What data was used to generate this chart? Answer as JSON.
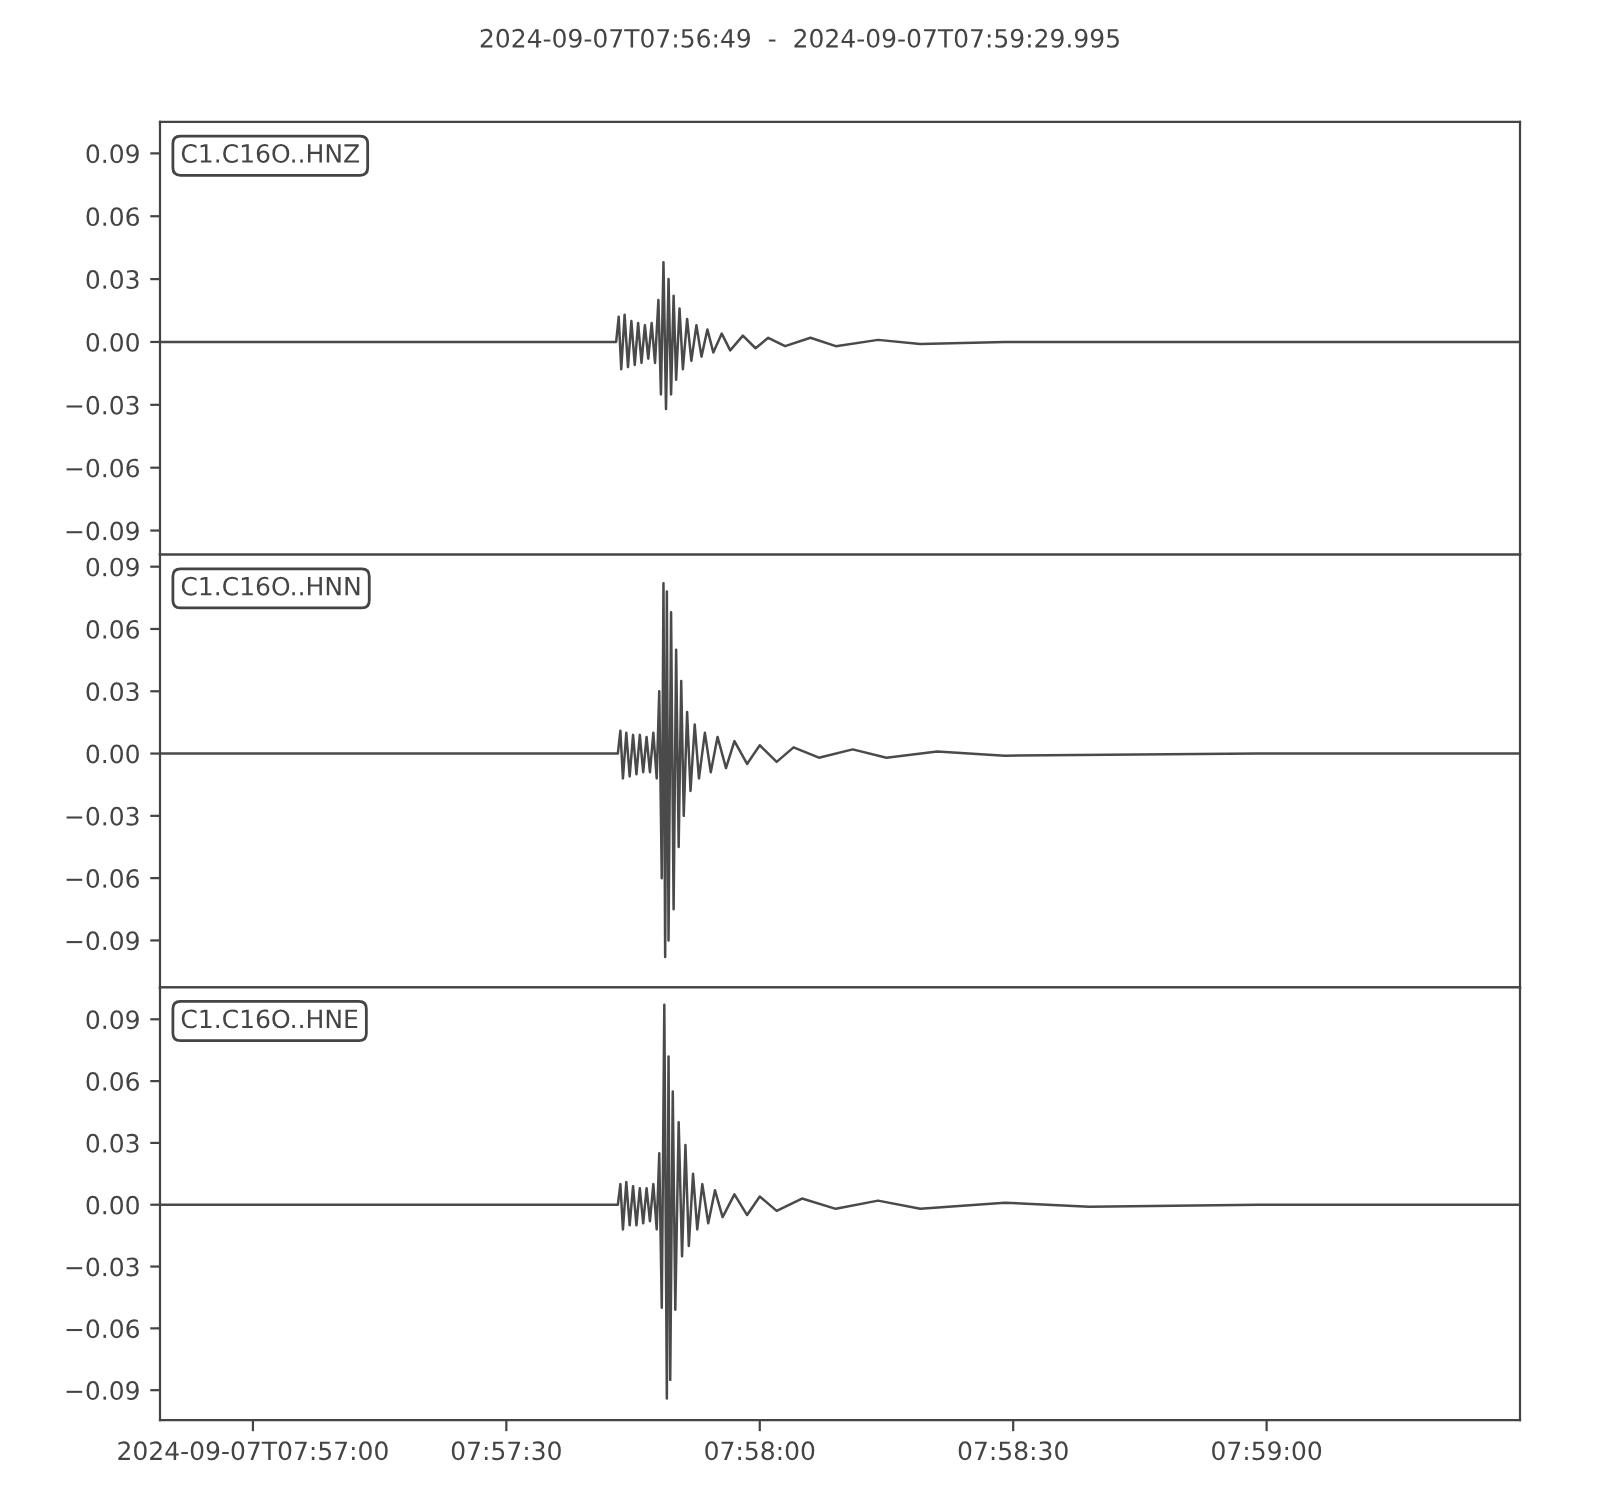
{
  "chart_data": [
    {
      "type": "line",
      "title": "2024-09-07T07:56:49  -  2024-09-07T07:59:29.995",
      "annotations": [
        "C1.C16O..HNZ"
      ],
      "tick_labels": "y",
      "grid": false,
      "legend": false,
      "xlim": [
        "2024-09-07T07:56:49",
        "2024-09-07T07:59:29.995"
      ],
      "ylim": [
        -0.1015,
        0.105
      ],
      "yticks": [
        {
          "value": -0.09,
          "label": "−0.09"
        },
        {
          "value": -0.06,
          "label": "−0.06"
        },
        {
          "value": -0.03,
          "label": "−0.03"
        },
        {
          "value": 0,
          "label": "0.00"
        },
        0.03,
        0.06,
        0.09
      ],
      "series": [
        {
          "color": "#4a4a4a",
          "x": [
            "2024-09-07T07:56:49",
            "2024-09-07T07:57:09",
            "2024-09-07T07:57:29",
            "2024-09-07T07:57:43.0",
            "2024-09-07T07:57:43.3",
            "2024-09-07T07:57:43.6",
            "2024-09-07T07:57:44.0",
            "2024-09-07T07:57:44.4",
            "2024-09-07T07:57:44.8",
            "2024-09-07T07:57:45.2",
            "2024-09-07T07:57:45.6",
            "2024-09-07T07:57:46.0",
            "2024-09-07T07:57:46.4",
            "2024-09-07T07:57:46.8",
            "2024-09-07T07:57:47.2",
            "2024-09-07T07:57:47.6",
            "2024-09-07T07:57:48.0",
            "2024-09-07T07:57:48.3",
            "2024-09-07T07:57:48.6",
            "2024-09-07T07:57:48.9",
            "2024-09-07T07:57:49.2",
            "2024-09-07T07:57:49.5",
            "2024-09-07T07:57:49.8",
            "2024-09-07T07:57:50.1",
            "2024-09-07T07:57:50.5",
            "2024-09-07T07:57:50.9",
            "2024-09-07T07:57:51.4",
            "2024-09-07T07:57:51.9",
            "2024-09-07T07:57:52.5",
            "2024-09-07T07:57:53.1",
            "2024-09-07T07:57:53.8",
            "2024-09-07T07:57:54.5",
            "2024-09-07T07:57:55.5",
            "2024-09-07T07:57:56.5",
            "2024-09-07T07:57:58",
            "2024-09-07T07:57:59.5",
            "2024-09-07T07:58:01",
            "2024-09-07T07:58:03",
            "2024-09-07T07:58:06",
            "2024-09-07T07:58:09",
            "2024-09-07T07:58:14",
            "2024-09-07T07:58:19",
            "2024-09-07T07:58:29",
            "2024-09-07T07:58:59",
            "2024-09-07T07:59:29.995"
          ],
          "values": [
            0,
            0,
            0,
            0,
            0.012,
            -0.013,
            0.013,
            -0.012,
            0.01,
            -0.011,
            0.009,
            -0.01,
            0.008,
            -0.008,
            0.009,
            -0.01,
            0.02,
            -0.025,
            0.038,
            -0.032,
            0.03,
            -0.025,
            0.022,
            -0.018,
            0.016,
            -0.013,
            0.011,
            -0.009,
            0.008,
            -0.007,
            0.006,
            -0.005,
            0.004,
            -0.004,
            0.003,
            -0.003,
            0.002,
            -0.002,
            0.002,
            -0.002,
            0.001,
            -0.001,
            0,
            0,
            0
          ]
        }
      ]
    },
    {
      "type": "line",
      "annotations": [
        "C1.C16O..HNN"
      ],
      "tick_labels": "y",
      "grid": false,
      "legend": false,
      "xlim": [
        "2024-09-07T07:56:49",
        "2024-09-07T07:59:29.995"
      ],
      "ylim": [
        -0.1126,
        0.0958
      ],
      "yticks": [
        {
          "value": -0.09,
          "label": "−0.09"
        },
        {
          "value": -0.06,
          "label": "−0.06"
        },
        {
          "value": -0.03,
          "label": "−0.03"
        },
        {
          "value": 0,
          "label": "0.00"
        },
        0.03,
        0.06,
        0.09
      ],
      "series": [
        {
          "color": "#4a4a4a",
          "x": [
            "2024-09-07T07:56:49",
            "2024-09-07T07:57:09",
            "2024-09-07T07:57:29",
            "2024-09-07T07:57:43.2",
            "2024-09-07T07:57:43.5",
            "2024-09-07T07:57:43.8",
            "2024-09-07T07:57:44.2",
            "2024-09-07T07:57:44.6",
            "2024-09-07T07:57:45.0",
            "2024-09-07T07:57:45.4",
            "2024-09-07T07:57:45.8",
            "2024-09-07T07:57:46.2",
            "2024-09-07T07:57:46.6",
            "2024-09-07T07:57:47.0",
            "2024-09-07T07:57:47.4",
            "2024-09-07T07:57:47.8",
            "2024-09-07T07:57:48.1",
            "2024-09-07T07:57:48.4",
            "2024-09-07T07:57:48.6",
            "2024-09-07T07:57:48.8",
            "2024-09-07T07:57:49.0",
            "2024-09-07T07:57:49.2",
            "2024-09-07T07:57:49.5",
            "2024-09-07T07:57:49.8",
            "2024-09-07T07:57:50.1",
            "2024-09-07T07:57:50.4",
            "2024-09-07T07:57:50.7",
            "2024-09-07T07:57:51.0",
            "2024-09-07T07:57:51.4",
            "2024-09-07T07:57:51.8",
            "2024-09-07T07:57:52.3",
            "2024-09-07T07:57:52.8",
            "2024-09-07T07:57:53.5",
            "2024-09-07T07:57:54.2",
            "2024-09-07T07:57:55",
            "2024-09-07T07:57:56",
            "2024-09-07T07:57:57",
            "2024-09-07T07:57:58.5",
            "2024-09-07T07:58:00",
            "2024-09-07T07:58:02",
            "2024-09-07T07:58:04",
            "2024-09-07T07:58:07",
            "2024-09-07T07:58:11",
            "2024-09-07T07:58:15",
            "2024-09-07T07:58:21",
            "2024-09-07T07:58:29",
            "2024-09-07T07:58:59",
            "2024-09-07T07:59:29.995"
          ],
          "values": [
            0,
            0,
            0,
            0,
            0.011,
            -0.012,
            0.01,
            -0.011,
            0.009,
            -0.01,
            0.009,
            -0.009,
            0.008,
            -0.009,
            0.01,
            -0.012,
            0.03,
            -0.06,
            0.082,
            -0.098,
            0.078,
            -0.09,
            0.068,
            -0.075,
            0.05,
            -0.045,
            0.035,
            -0.03,
            0.02,
            -0.018,
            0.014,
            -0.012,
            0.01,
            -0.009,
            0.008,
            -0.007,
            0.006,
            -0.005,
            0.004,
            -0.004,
            0.003,
            -0.002,
            0.002,
            -0.002,
            0.001,
            -0.001,
            0,
            0
          ]
        }
      ]
    },
    {
      "type": "line",
      "annotations": [
        "C1.C16O..HNE"
      ],
      "grid": false,
      "legend": false,
      "xlim": [
        "2024-09-07T07:56:49",
        "2024-09-07T07:59:29.995"
      ],
      "xticks": [
        {
          "value": "2024-09-07T07:57:00",
          "label": "2024-09-07T07:57:00"
        },
        {
          "value": "2024-09-07T07:57:30",
          "label": "07:57:30"
        },
        {
          "value": "2024-09-07T07:58:00",
          "label": "07:58:00"
        },
        {
          "value": "2024-09-07T07:58:30",
          "label": "07:58:30"
        },
        {
          "value": "2024-09-07T07:59:00",
          "label": "07:59:00"
        }
      ],
      "ylim": [
        -0.1045,
        0.1055
      ],
      "yticks": [
        {
          "value": -0.09,
          "label": "−0.09"
        },
        {
          "value": -0.06,
          "label": "−0.06"
        },
        {
          "value": -0.03,
          "label": "−0.03"
        },
        {
          "value": 0,
          "label": "0.00"
        },
        0.03,
        0.06,
        0.09
      ],
      "series": [
        {
          "color": "#4a4a4a",
          "x": [
            "2024-09-07T07:56:49",
            "2024-09-07T07:57:09",
            "2024-09-07T07:57:29",
            "2024-09-07T07:57:43.2",
            "2024-09-07T07:57:43.5",
            "2024-09-07T07:57:43.8",
            "2024-09-07T07:57:44.2",
            "2024-09-07T07:57:44.6",
            "2024-09-07T07:57:45.0",
            "2024-09-07T07:57:45.4",
            "2024-09-07T07:57:45.8",
            "2024-09-07T07:57:46.2",
            "2024-09-07T07:57:46.6",
            "2024-09-07T07:57:47.0",
            "2024-09-07T07:57:47.4",
            "2024-09-07T07:57:47.8",
            "2024-09-07T07:57:48.1",
            "2024-09-07T07:57:48.4",
            "2024-09-07T07:57:48.7",
            "2024-09-07T07:57:49.0",
            "2024-09-07T07:57:49.2",
            "2024-09-07T07:57:49.4",
            "2024-09-07T07:57:49.7",
            "2024-09-07T07:57:50.0",
            "2024-09-07T07:57:50.4",
            "2024-09-07T07:57:50.8",
            "2024-09-07T07:57:51.2",
            "2024-09-07T07:57:51.6",
            "2024-09-07T07:57:52.1",
            "2024-09-07T07:57:52.6",
            "2024-09-07T07:57:53.2",
            "2024-09-07T07:57:53.9",
            "2024-09-07T07:57:54.7",
            "2024-09-07T07:57:55.6",
            "2024-09-07T07:57:57",
            "2024-09-07T07:57:58.5",
            "2024-09-07T07:58:00",
            "2024-09-07T07:58:02",
            "2024-09-07T07:58:05",
            "2024-09-07T07:58:09",
            "2024-09-07T07:58:14",
            "2024-09-07T07:58:19",
            "2024-09-07T07:58:29",
            "2024-09-07T07:58:39",
            "2024-09-07T07:58:59",
            "2024-09-07T07:59:29.995"
          ],
          "values": [
            0,
            0,
            0,
            0,
            0.01,
            -0.012,
            0.011,
            -0.01,
            0.009,
            -0.01,
            0.008,
            -0.009,
            0.008,
            -0.008,
            0.01,
            -0.012,
            0.025,
            -0.05,
            0.097,
            -0.094,
            0.072,
            -0.085,
            0.055,
            -0.051,
            0.04,
            -0.025,
            0.029,
            -0.02,
            0.015,
            -0.012,
            0.01,
            -0.009,
            0.007,
            -0.006,
            0.005,
            -0.005,
            0.004,
            -0.003,
            0.003,
            -0.002,
            0.002,
            -0.002,
            0.001,
            -0.001,
            0,
            0
          ]
        }
      ]
    }
  ]
}
